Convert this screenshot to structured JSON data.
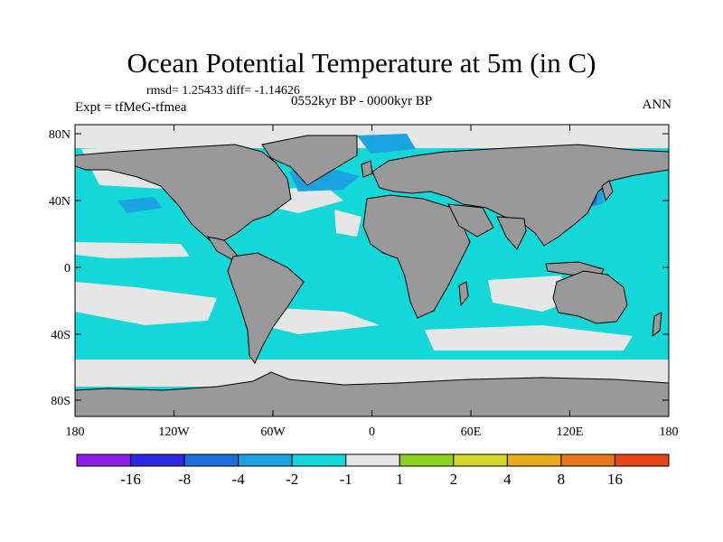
{
  "title": "Ocean Potential Temperature at 5m (in C)",
  "stats": "rmsd= 1.25433 diff= -1.14626",
  "experiment": "Expt = tfMeG-tfmea",
  "period": "0552kyr BP - 0000kyr BP",
  "season": "ANN",
  "lat_labels": [
    "80N",
    "40N",
    "0",
    "40S",
    "80S"
  ],
  "lon_labels": [
    "180",
    "120W",
    "60W",
    "0",
    "60E",
    "120E",
    "180"
  ],
  "colorbar": {
    "colors": [
      "#8c1ee6",
      "#2b28e0",
      "#1c6fd8",
      "#1aa3e0",
      "#14d8d8",
      "#e6e6e6",
      "#8cd21e",
      "#d6d62a",
      "#e6aa1a",
      "#e6781a",
      "#e6461a"
    ],
    "labels": [
      "-16",
      "-8",
      "-4",
      "-2",
      "-1",
      "1",
      "2",
      "4",
      "8",
      "16"
    ]
  },
  "palette": {
    "land": "#999999",
    "no_change": "#e6e6e6",
    "cool_small": "#14d8d8",
    "cool_mid": "#1aa3e0",
    "cool_strong": "#1c6fd8"
  }
}
